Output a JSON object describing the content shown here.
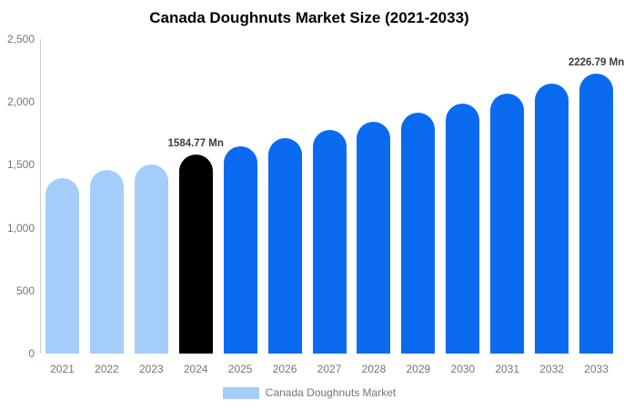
{
  "title": "Canada Doughnuts Market Size (2021-2033)",
  "colors": {
    "historical": "#A4CDF9",
    "base": "#000000",
    "forecast": "#0A6AF0",
    "axis_line": "#CCCCCC",
    "tick_text": "#757575",
    "data_label_text": "#3D3D3D"
  },
  "legend": {
    "label": "Canada Doughnuts Market",
    "swatch_color": "#A4CDF9"
  },
  "chart_data": {
    "type": "bar",
    "title": "Canada Doughnuts Market Size (2021-2033)",
    "xlabel": "",
    "ylabel": "",
    "categories": [
      "2021",
      "2022",
      "2023",
      "2024",
      "2025",
      "2026",
      "2027",
      "2028",
      "2029",
      "2030",
      "2031",
      "2032",
      "2033"
    ],
    "values": [
      1394,
      1456,
      1505,
      1584.77,
      1645.8,
      1709.2,
      1775.1,
      1843.5,
      1914.5,
      1988.2,
      2064.8,
      2144.3,
      2226.79
    ],
    "bar_roles": [
      "historical",
      "historical",
      "historical",
      "base",
      "forecast",
      "forecast",
      "forecast",
      "forecast",
      "forecast",
      "forecast",
      "forecast",
      "forecast",
      "forecast"
    ],
    "ylim": [
      0,
      2500
    ],
    "yticks": [
      {
        "label": "0",
        "value": 0
      },
      {
        "label": "500",
        "value": 500
      },
      {
        "label": "1,000",
        "value": 1000
      },
      {
        "label": "1,500",
        "value": 1500
      },
      {
        "label": "2,000",
        "value": 2000
      },
      {
        "label": "2,500",
        "value": 2500
      }
    ],
    "grid": false,
    "legend_position": "bottom",
    "bar_top_style": "pill-rounded",
    "annotations": [
      {
        "category": "2024",
        "text": "1584.77 Mn"
      },
      {
        "category": "2033",
        "text": "2226.79 Mn"
      }
    ]
  }
}
